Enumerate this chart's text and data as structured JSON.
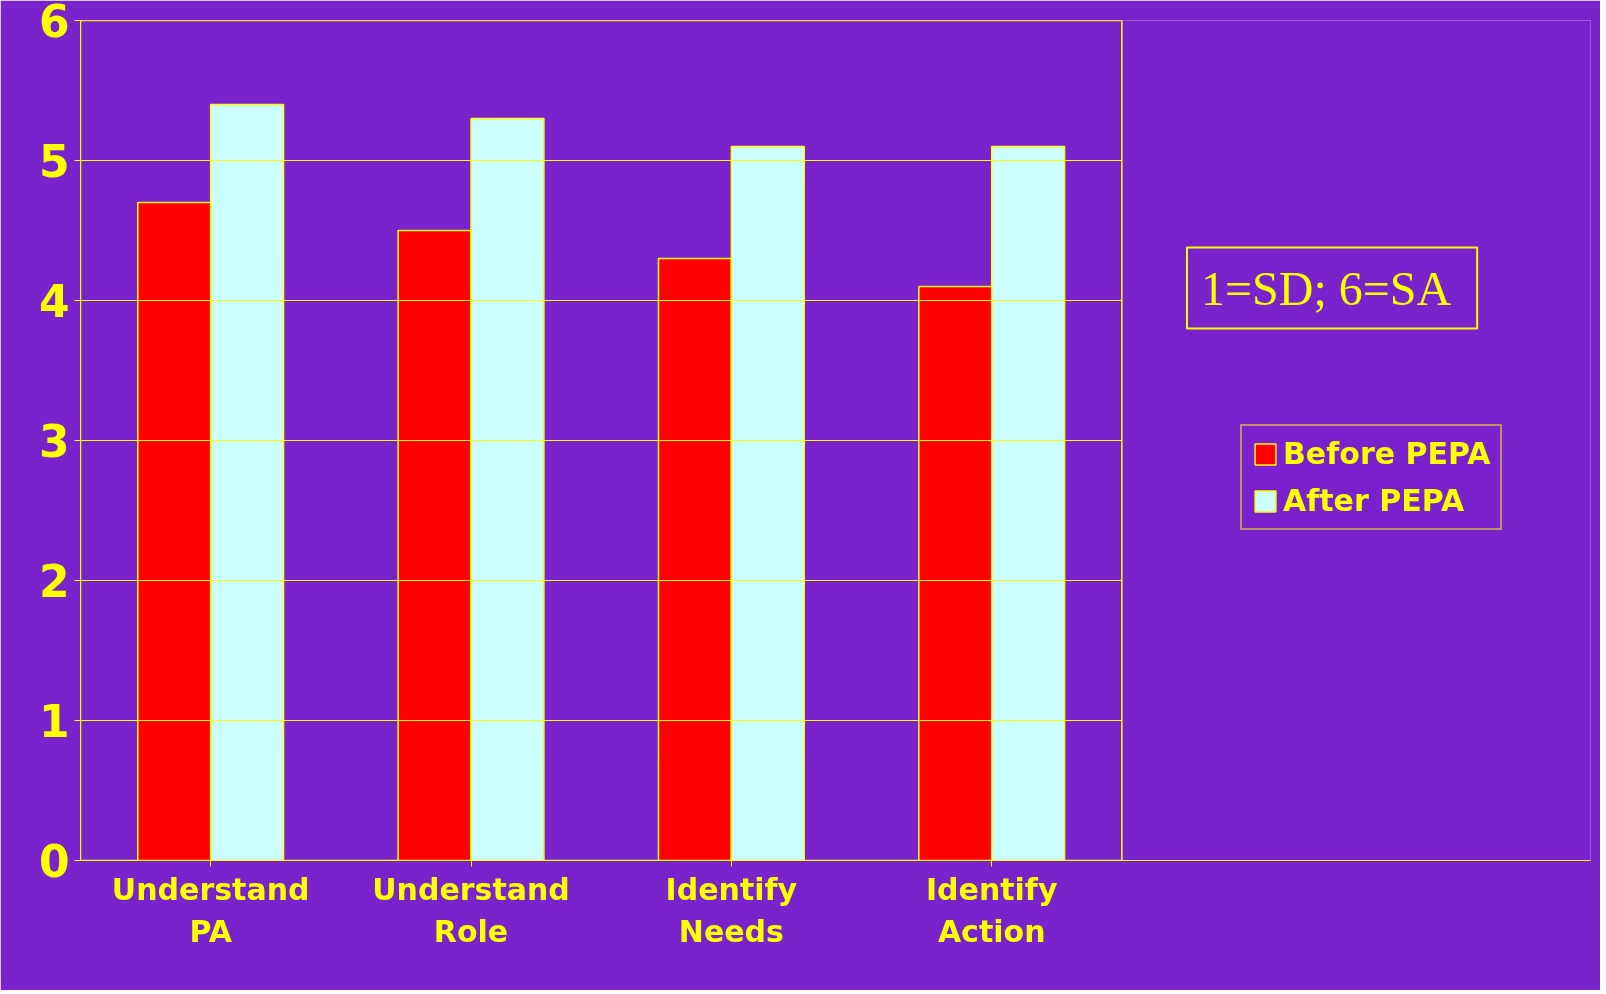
{
  "chart_data": {
    "type": "bar",
    "categories": [
      "Understand PA",
      "Understand Role",
      "Identify Needs",
      "Identify Action"
    ],
    "series": [
      {
        "name": "Before PEPA",
        "color": "#ff0000",
        "values": [
          4.7,
          4.5,
          4.3,
          4.1
        ]
      },
      {
        "name": "After PEPA",
        "color": "#ccffff",
        "values": [
          5.4,
          5.3,
          5.1,
          5.1
        ]
      }
    ],
    "ylim": [
      0,
      6
    ],
    "yticks": [
      0,
      1,
      2,
      3,
      4,
      5,
      6
    ],
    "grid": "y",
    "legend": "right",
    "annotations": [
      "1=SD;  6=SA"
    ]
  }
}
